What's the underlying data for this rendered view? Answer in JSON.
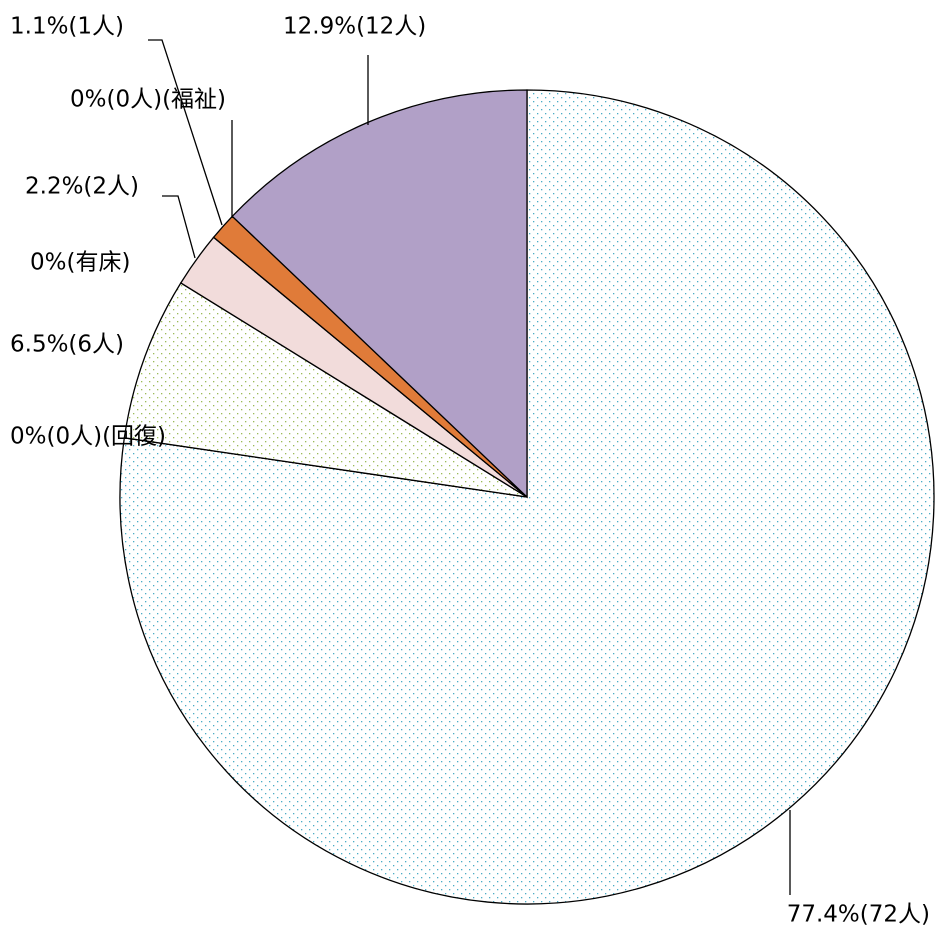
{
  "chart_data": {
    "type": "pie",
    "values": [
      77.4,
      0,
      6.5,
      0,
      2.2,
      0,
      1.1,
      12.9
    ],
    "value_labels": [
      "77.4%(72人)",
      "0%(0人)(回復)",
      "6.5%(6人)",
      "0%(有床)",
      "2.2%(2人)",
      "0%(0人)(福祉)",
      "1.1%(1人)",
      "12.9%(12人)"
    ],
    "colors": [
      "#4bacc6",
      "#ffffff",
      "#9bbb59",
      "#ffffff",
      "#f2dcdb",
      "#ffffff",
      "#e07b39",
      "#b1a0c7"
    ],
    "patterns": [
      "dots",
      null,
      "dots",
      null,
      null,
      null,
      null,
      null
    ],
    "start_angle": 0,
    "direction": "clockwise"
  }
}
